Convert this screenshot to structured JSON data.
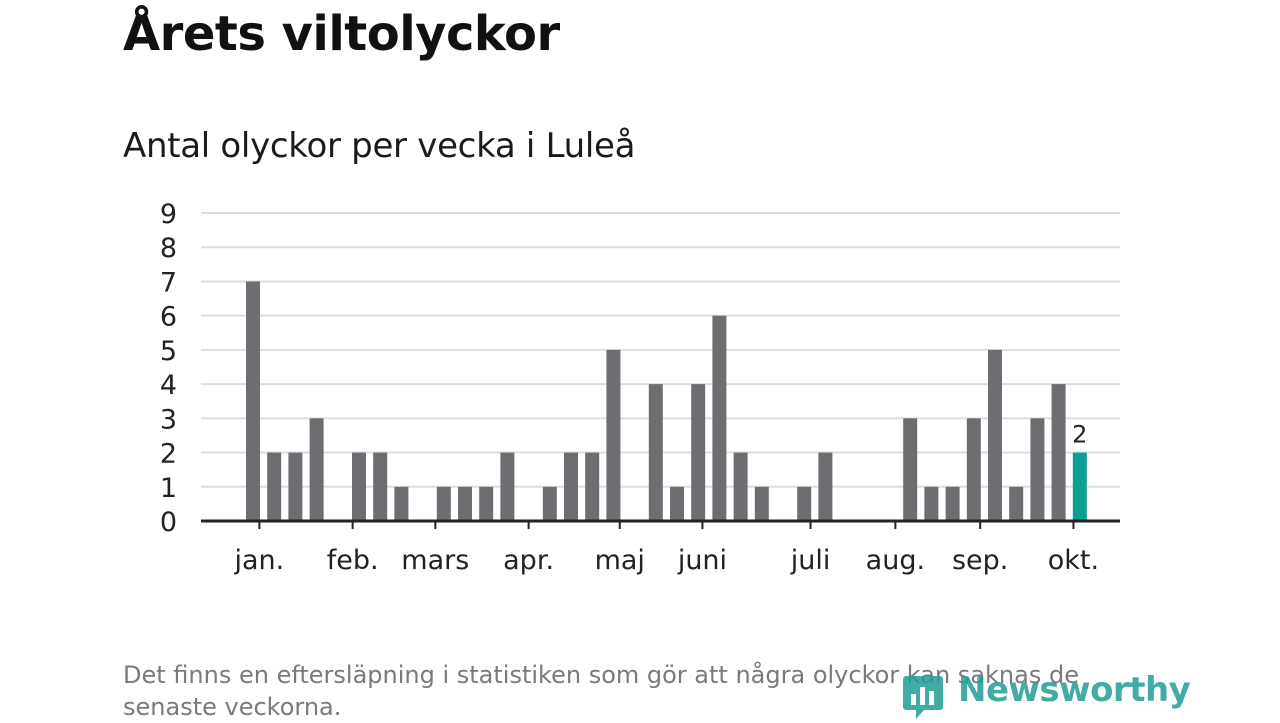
{
  "title": "Årets viltolyckor",
  "subtitle": "Antal olyckor per vecka i Luleå",
  "footnote": "Det finns en eftersläpning i statistiken som gör att några olyckor kan saknas de senaste veckorna.",
  "logo_text": "Newsworthy",
  "colors": {
    "bar": "#6e6d72",
    "highlight": "#0e9f92",
    "grid": "#dddddd",
    "axis": "#222222",
    "text": "#222222"
  },
  "chart_data": {
    "type": "bar",
    "title": "",
    "xlabel": "",
    "ylabel": "",
    "ylim": [
      0,
      9
    ],
    "yticks": [
      0,
      1,
      2,
      3,
      4,
      5,
      6,
      7,
      8,
      9
    ],
    "grid": true,
    "x_week": [
      1,
      2,
      3,
      4,
      5,
      6,
      7,
      8,
      9,
      10,
      11,
      12,
      13,
      14,
      15,
      16,
      17,
      18,
      19,
      20,
      21,
      22,
      23,
      24,
      25,
      26,
      27,
      28,
      29,
      30,
      31,
      32,
      33,
      34,
      35,
      36,
      37,
      38,
      39,
      40,
      41
    ],
    "values": [
      7,
      2,
      2,
      3,
      0,
      2,
      2,
      1,
      0,
      1,
      1,
      1,
      2,
      0,
      1,
      2,
      2,
      5,
      0,
      4,
      1,
      4,
      6,
      2,
      1,
      0,
      1,
      2,
      0,
      0,
      0,
      3,
      1,
      1,
      3,
      5,
      1,
      3,
      4,
      2,
      0
    ],
    "month_labels": [
      {
        "label": "jan.",
        "week": 1.3
      },
      {
        "label": "feb.",
        "week": 5.7
      },
      {
        "label": "mars",
        "week": 9.6
      },
      {
        "label": "apr.",
        "week": 14.0
      },
      {
        "label": "maj",
        "week": 18.3
      },
      {
        "label": "juni",
        "week": 22.2
      },
      {
        "label": "juli",
        "week": 27.3
      },
      {
        "label": "aug.",
        "week": 31.3
      },
      {
        "label": "sep.",
        "week": 35.3
      },
      {
        "label": "okt.",
        "week": 39.7
      }
    ],
    "highlight": {
      "week": 40,
      "value": 2,
      "label": "2"
    }
  }
}
